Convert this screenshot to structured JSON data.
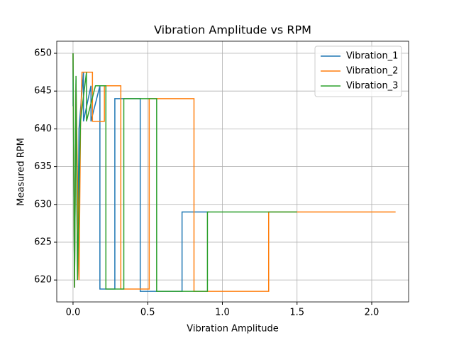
{
  "chart_data": {
    "type": "line",
    "title": "Vibration Amplitude vs RPM",
    "x_label": "Vibration Amplitude",
    "y_label": "Measured RPM",
    "xlim": [
      -0.109,
      2.247
    ],
    "ylim": [
      617.1,
      651.6
    ],
    "xticks": [
      {
        "value": 0,
        "label": "0.0"
      },
      0.5,
      {
        "value": 1,
        "label": "1.0"
      },
      1.5,
      {
        "value": 2,
        "label": "2.0"
      }
    ],
    "yticks": [
      620,
      625,
      630,
      635,
      640,
      645,
      650
    ],
    "grid": true,
    "legend": "upper right",
    "series": [
      {
        "name": "Vibration_1",
        "color": "#1f77b4",
        "x": [
          0.0,
          0.0,
          0.01,
          0.02,
          0.03,
          0.04,
          0.07,
          0.07,
          0.12,
          0.12,
          0.18,
          0.18,
          0.28,
          0.28,
          0.45,
          0.45,
          0.73,
          0.73,
          0.91
        ],
        "values": [
          643,
          650,
          619,
          646.5,
          620,
          640,
          647.5,
          641,
          645.7,
          641,
          645.7,
          618.8,
          618.8,
          644,
          644,
          618.5,
          618.5,
          629,
          629
        ]
      },
      {
        "name": "Vibration_2",
        "color": "#ff7f0e",
        "x": [
          0.0,
          0.01,
          0.02,
          0.04,
          0.05,
          0.06,
          0.13,
          0.13,
          0.21,
          0.21,
          0.32,
          0.32,
          0.51,
          0.51,
          0.81,
          0.81,
          1.31,
          1.31,
          2.16
        ],
        "values": [
          650,
          619,
          646,
          620,
          640,
          647.5,
          647.5,
          641,
          641,
          645.7,
          645.7,
          618.8,
          618.8,
          644,
          644,
          618.5,
          618.5,
          629,
          629
        ]
      },
      {
        "name": "Vibration_3",
        "color": "#2ca02c",
        "x": [
          0.0,
          0.01,
          0.02,
          0.03,
          0.05,
          0.09,
          0.09,
          0.15,
          0.22,
          0.22,
          0.34,
          0.34,
          0.56,
          0.56,
          0.9,
          0.9,
          1.5
        ],
        "values": [
          650,
          619,
          647,
          620,
          641,
          647.5,
          641,
          645.7,
          645.7,
          618.8,
          618.8,
          644,
          644,
          618.5,
          618.5,
          629,
          629
        ]
      }
    ]
  }
}
